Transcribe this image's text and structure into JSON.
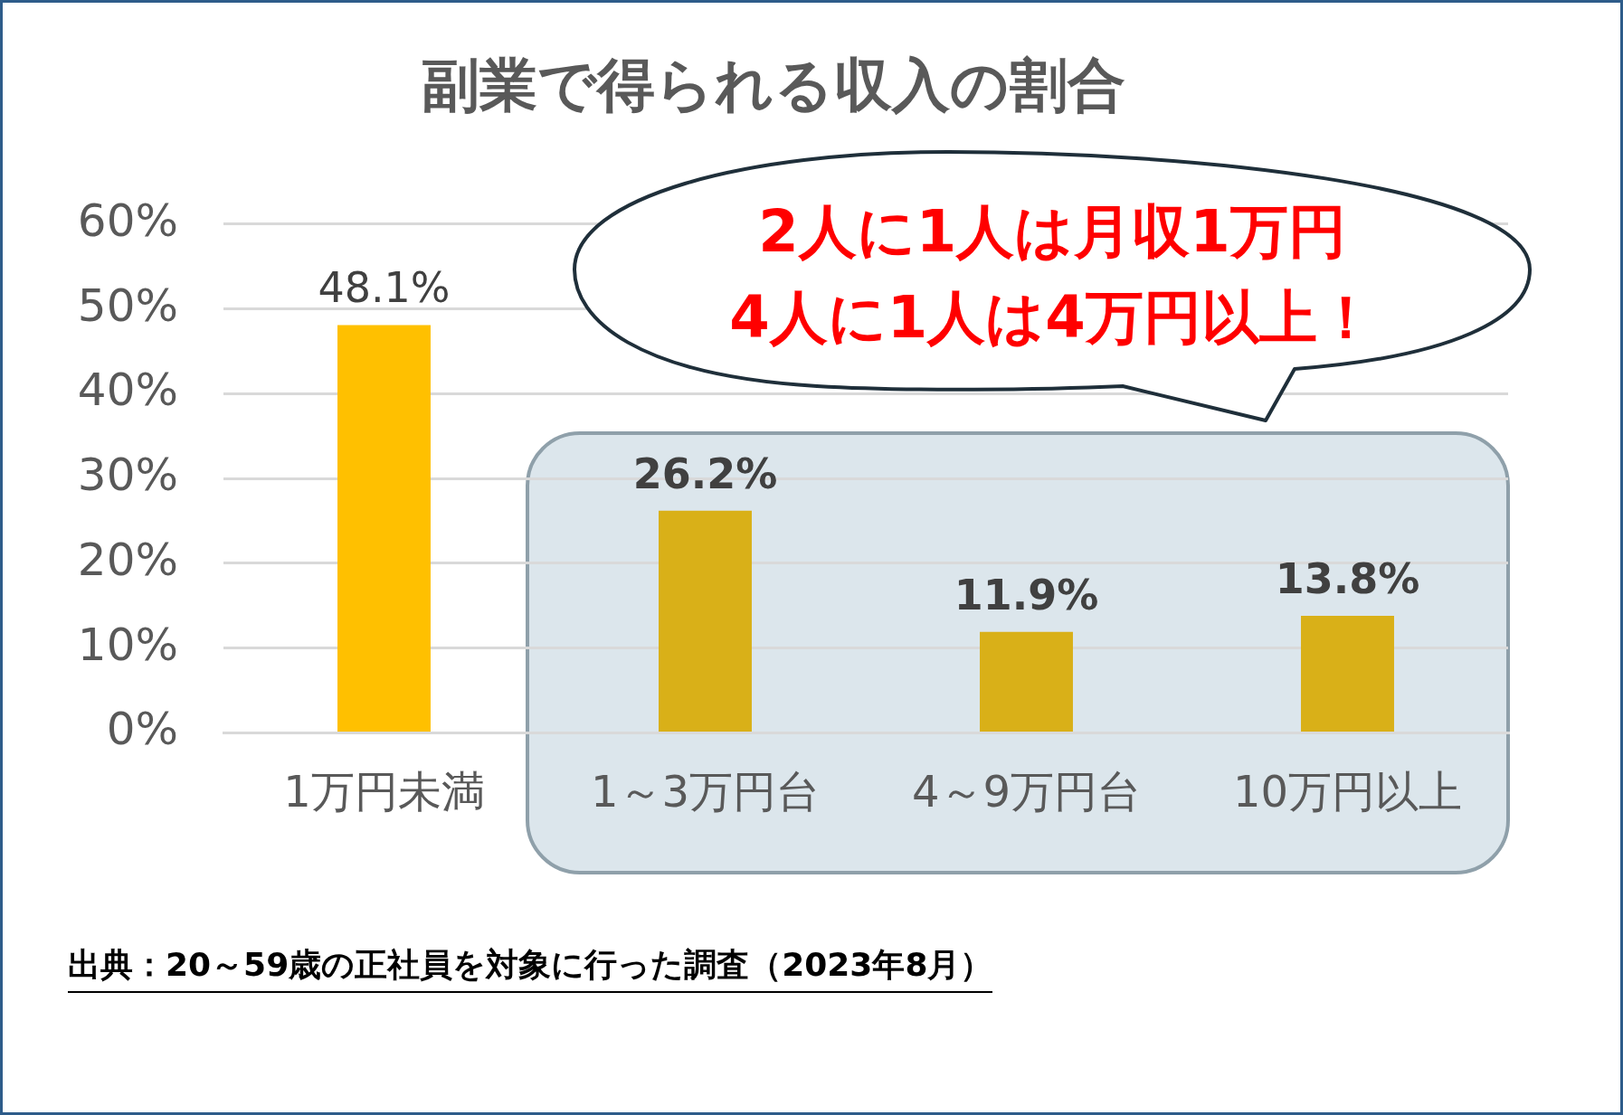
{
  "chart_data": {
    "type": "bar",
    "title": "副業で得られる収入の割合",
    "categories": [
      "1万円未満",
      "1～3万円台",
      "4～9万円台",
      "10万円以上"
    ],
    "values": [
      48.1,
      26.2,
      11.9,
      13.8
    ],
    "value_labels": [
      "48.1%",
      "26.2%",
      "11.9%",
      "13.8%"
    ],
    "colors": [
      "#ffc000",
      "#d9b018",
      "#d9b018",
      "#d9b018"
    ],
    "ylim": [
      0,
      60
    ],
    "yticks": [
      {
        "value": 0,
        "label": "0%"
      },
      {
        "value": 10,
        "label": "10%"
      },
      {
        "value": 20,
        "label": "20%"
      },
      {
        "value": 30,
        "label": "30%"
      },
      {
        "value": 40,
        "label": "40%"
      },
      {
        "value": 50,
        "label": "50%"
      },
      {
        "value": 60,
        "label": "60%"
      }
    ],
    "grid": "y",
    "legend": false,
    "annotations": [
      "2人に1人は月収1万円",
      "4人に1人は4万円以上！",
      "出典：20～59歳の正社員を対象に行った調査（2023年8月）"
    ]
  }
}
